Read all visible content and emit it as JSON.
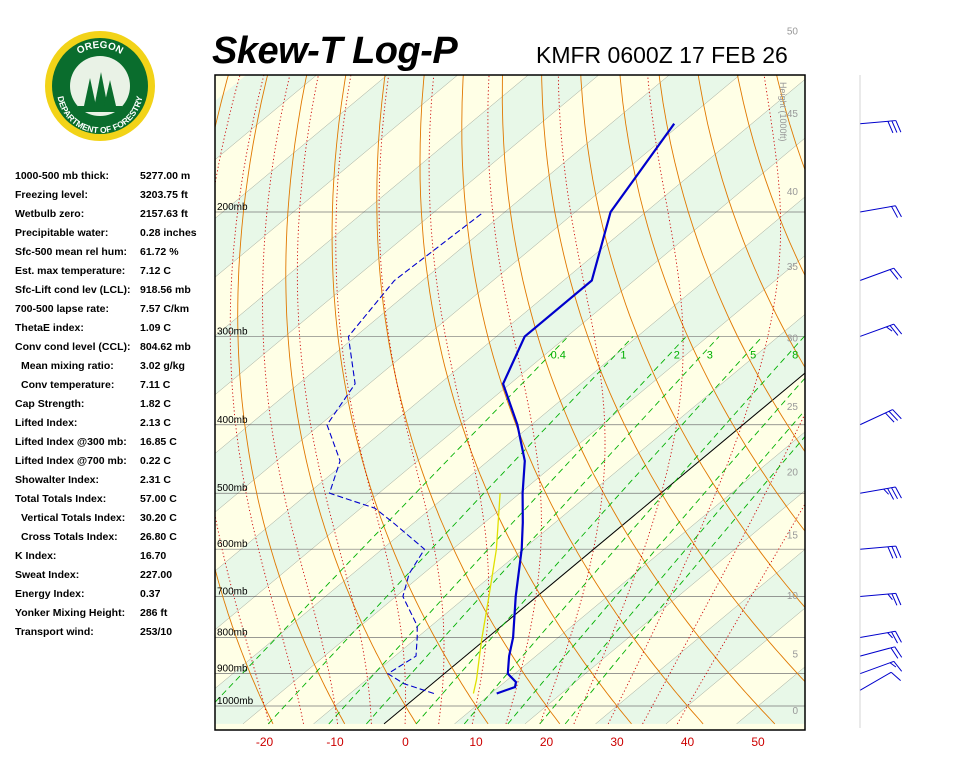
{
  "header": {
    "title": "Skew-T Log-P",
    "subtitle": "KMFR 0600Z 17 FEB 26",
    "logo": {
      "top_text": "OREGON",
      "bottom_text": "DEPARTMENT OF FORESTRY",
      "colors": {
        "ring": "#f2d318",
        "center": "#0a6d2d",
        "text": "#ffffff"
      }
    }
  },
  "indices": [
    {
      "label": "1000-500 mb thick:",
      "value": "5277.00 m",
      "indent": false
    },
    {
      "label": "Freezing level:",
      "value": "3203.75 ft",
      "indent": false
    },
    {
      "label": "Wetbulb zero:",
      "value": "2157.63 ft",
      "indent": false
    },
    {
      "label": "Precipitable water:",
      "value": "0.28 inches",
      "indent": false
    },
    {
      "label": "Sfc-500 mean rel hum:",
      "value": "61.72 %",
      "indent": false
    },
    {
      "label": "Est. max temperature:",
      "value": "7.12 C",
      "indent": false
    },
    {
      "label": "Sfc-Lift cond lev (LCL):",
      "value": "918.56 mb",
      "indent": false
    },
    {
      "label": "700-500 lapse rate:",
      "value": "7.57 C/km",
      "indent": false
    },
    {
      "label": "ThetaE index:",
      "value": "1.09 C",
      "indent": false
    },
    {
      "label": "Conv cond level (CCL):",
      "value": "804.62 mb",
      "indent": false
    },
    {
      "label": "Mean mixing ratio:",
      "value": "3.02 g/kg",
      "indent": true
    },
    {
      "label": "Conv temperature:",
      "value": "7.11 C",
      "indent": true
    },
    {
      "label": "Cap Strength:",
      "value": "1.82 C",
      "indent": false
    },
    {
      "label": "Lifted Index:",
      "value": "2.13 C",
      "indent": false
    },
    {
      "label": "Lifted Index @300 mb:",
      "value": "16.85 C",
      "indent": false
    },
    {
      "label": "Lifted Index @700 mb:",
      "value": "0.22 C",
      "indent": false
    },
    {
      "label": "Showalter Index:",
      "value": "2.31 C",
      "indent": false
    },
    {
      "label": "Total Totals Index:",
      "value": "57.00 C",
      "indent": false
    },
    {
      "label": "Vertical Totals Index:",
      "value": "30.20 C",
      "indent": true
    },
    {
      "label": "Cross Totals Index:",
      "value": "26.80 C",
      "indent": true
    },
    {
      "label": "K Index:",
      "value": "16.70",
      "indent": false
    },
    {
      "label": "Sweat Index:",
      "value": "227.00",
      "indent": false
    },
    {
      "label": "Energy Index:",
      "value": "0.37",
      "indent": false
    },
    {
      "label": "Yonker Mixing Height:",
      "value": "286 ft",
      "indent": false
    },
    {
      "label": "Transport wind:",
      "value": "253/10",
      "indent": false
    }
  ],
  "chart_data": {
    "type": "line",
    "x_ticks": [
      -20,
      -10,
      0,
      10,
      20,
      30,
      40,
      50
    ],
    "x_tick_labels": [
      "-20",
      "-10",
      "0",
      "10",
      "20",
      "30",
      "40",
      "50"
    ],
    "pressure_levels": [
      1000,
      900,
      800,
      700,
      600,
      500,
      400,
      300,
      200
    ],
    "pressure_labels": [
      "1000mb",
      "900mb",
      "800mb",
      "700mb",
      "600mb",
      "500mb",
      "400mb",
      "300mb",
      "200mb"
    ],
    "height_axis_title": "Height (1000ft)",
    "height_ticks": [
      0,
      5,
      10,
      15,
      20,
      25,
      30,
      35,
      40,
      45,
      50
    ],
    "height_tick_labels": [
      "0",
      "5",
      "10",
      "15",
      "20",
      "25",
      "30",
      "35",
      "40",
      "45",
      "50"
    ],
    "mixing_ratio_labels": [
      "0.4",
      "1",
      "2",
      "3",
      "5",
      "8"
    ],
    "temperature": [
      {
        "p": 960,
        "t": 10.8
      },
      {
        "p": 940,
        "t": 12.3
      },
      {
        "p": 925,
        "t": 11.6
      },
      {
        "p": 900,
        "t": 9.0
      },
      {
        "p": 850,
        "t": 6.2
      },
      {
        "p": 800,
        "t": 3.6
      },
      {
        "p": 700,
        "t": -3.0
      },
      {
        "p": 600,
        "t": -10.2
      },
      {
        "p": 550,
        "t": -14.6
      },
      {
        "p": 500,
        "t": -19.6
      },
      {
        "p": 450,
        "t": -24.8
      },
      {
        "p": 400,
        "t": -32.0
      },
      {
        "p": 350,
        "t": -41.0
      },
      {
        "p": 300,
        "t": -46.0
      },
      {
        "p": 250,
        "t": -46.0
      },
      {
        "p": 200,
        "t": -55.0
      },
      {
        "p": 150,
        "t": -61.0
      }
    ],
    "dewpoint": [
      {
        "p": 960,
        "t": 1.9
      },
      {
        "p": 930,
        "t": -4.0
      },
      {
        "p": 900,
        "t": -8.0
      },
      {
        "p": 850,
        "t": -7.0
      },
      {
        "p": 800,
        "t": -10.0
      },
      {
        "p": 770,
        "t": -12.0
      },
      {
        "p": 700,
        "t": -19.0
      },
      {
        "p": 650,
        "t": -22.0
      },
      {
        "p": 600,
        "t": -24.0
      },
      {
        "p": 550,
        "t": -33.0
      },
      {
        "p": 525,
        "t": -38.0
      },
      {
        "p": 500,
        "t": -47.0
      },
      {
        "p": 450,
        "t": -51.0
      },
      {
        "p": 400,
        "t": -59.0
      },
      {
        "p": 350,
        "t": -62.0
      },
      {
        "p": 300,
        "t": -71.0
      },
      {
        "p": 250,
        "t": -74.0
      },
      {
        "p": 200,
        "t": -73.0
      }
    ],
    "parcel": [
      {
        "p": 960,
        "t": 7.5
      },
      {
        "p": 918,
        "t": 5.6
      },
      {
        "p": 850,
        "t": 2.0
      },
      {
        "p": 800,
        "t": -0.8
      },
      {
        "p": 700,
        "t": -6.8
      },
      {
        "p": 600,
        "t": -13.8
      },
      {
        "p": 500,
        "t": -22.8
      }
    ],
    "wind_barbs": [
      {
        "p": 950,
        "dir": 240,
        "spd": 10
      },
      {
        "p": 900,
        "dir": 250,
        "spd": 15
      },
      {
        "p": 850,
        "dir": 255,
        "spd": 20
      },
      {
        "p": 800,
        "dir": 260,
        "spd": 25
      },
      {
        "p": 700,
        "dir": 265,
        "spd": 25
      },
      {
        "p": 600,
        "dir": 265,
        "spd": 30
      },
      {
        "p": 500,
        "dir": 260,
        "spd": 35
      },
      {
        "p": 400,
        "dir": 245,
        "spd": 30
      },
      {
        "p": 300,
        "dir": 250,
        "spd": 25
      },
      {
        "p": 250,
        "dir": 250,
        "spd": 20
      },
      {
        "p": 200,
        "dir": 260,
        "spd": 20
      },
      {
        "p": 150,
        "dir": 265,
        "spd": 30
      }
    ],
    "colors": {
      "temperature": "#0000cc",
      "dewpoint": "#0000cc",
      "parcel": "#e0e000",
      "isotherm": "#000000",
      "dry_adiabat": "#e07800",
      "moist_adiabat": "#cc0000",
      "mixing_ratio": "#00b000",
      "isobar": "#777777",
      "barb": "#0000cc",
      "band_yellow": "#ffffe6",
      "band_green": "#e8f8e8",
      "tick_label": "#cc0000"
    }
  }
}
